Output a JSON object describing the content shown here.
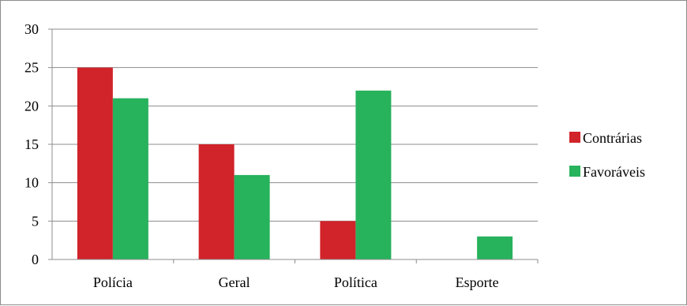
{
  "chart_data": {
    "type": "bar",
    "categories": [
      "Polícia",
      "Geral",
      "Política",
      "Esporte"
    ],
    "series": [
      {
        "name": "Contrárias",
        "values": [
          25,
          15,
          5,
          0
        ],
        "color": "#d1232a"
      },
      {
        "name": "Favoráveis",
        "values": [
          21,
          11,
          22,
          3
        ],
        "color": "#27b25c"
      }
    ],
    "ylim": [
      0,
      30
    ],
    "yticks": [
      "0",
      "5",
      "10",
      "15",
      "20",
      "25",
      "30"
    ],
    "grid": true,
    "legend_position": "right",
    "title": "",
    "xlabel": "",
    "ylabel": ""
  }
}
